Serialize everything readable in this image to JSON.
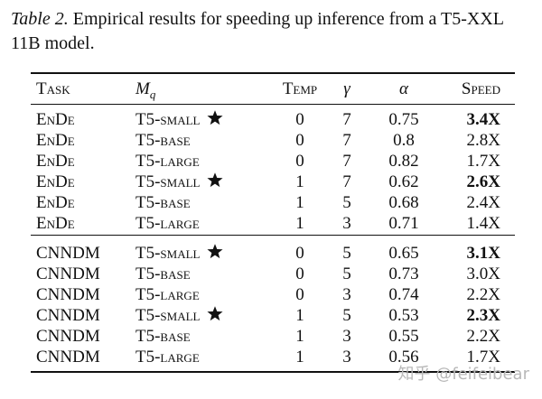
{
  "caption": {
    "label": "Table 2.",
    "text": "Empirical results for speeding up inference from a T5-XXL 11B model."
  },
  "table": {
    "headers": {
      "task": "Task",
      "model": "M",
      "model_sub": "q",
      "temp": "Temp",
      "gamma": "γ",
      "alpha": "α",
      "speed": "Speed"
    },
    "groups": [
      {
        "rows": [
          {
            "task": "EnDe",
            "model": "T5-small",
            "star": true,
            "temp": "0",
            "gamma": "7",
            "alpha": "0.75",
            "speed": "3.4X",
            "bold": true
          },
          {
            "task": "EnDe",
            "model": "T5-base",
            "star": false,
            "temp": "0",
            "gamma": "7",
            "alpha": "0.8",
            "speed": "2.8X",
            "bold": false
          },
          {
            "task": "EnDe",
            "model": "T5-large",
            "star": false,
            "temp": "0",
            "gamma": "7",
            "alpha": "0.82",
            "speed": "1.7X",
            "bold": false
          },
          {
            "task": "EnDe",
            "model": "T5-small",
            "star": true,
            "temp": "1",
            "gamma": "7",
            "alpha": "0.62",
            "speed": "2.6X",
            "bold": true
          },
          {
            "task": "EnDe",
            "model": "T5-base",
            "star": false,
            "temp": "1",
            "gamma": "5",
            "alpha": "0.68",
            "speed": "2.4X",
            "bold": false
          },
          {
            "task": "EnDe",
            "model": "T5-large",
            "star": false,
            "temp": "1",
            "gamma": "3",
            "alpha": "0.71",
            "speed": "1.4X",
            "bold": false
          }
        ]
      },
      {
        "rows": [
          {
            "task": "CNNDM",
            "model": "T5-small",
            "star": true,
            "temp": "0",
            "gamma": "5",
            "alpha": "0.65",
            "speed": "3.1X",
            "bold": true
          },
          {
            "task": "CNNDM",
            "model": "T5-base",
            "star": false,
            "temp": "0",
            "gamma": "5",
            "alpha": "0.73",
            "speed": "3.0X",
            "bold": false
          },
          {
            "task": "CNNDM",
            "model": "T5-large",
            "star": false,
            "temp": "0",
            "gamma": "3",
            "alpha": "0.74",
            "speed": "2.2X",
            "bold": false
          },
          {
            "task": "CNNDM",
            "model": "T5-small",
            "star": true,
            "temp": "1",
            "gamma": "5",
            "alpha": "0.53",
            "speed": "2.3X",
            "bold": true
          },
          {
            "task": "CNNDM",
            "model": "T5-base",
            "star": false,
            "temp": "1",
            "gamma": "3",
            "alpha": "0.55",
            "speed": "2.2X",
            "bold": false
          },
          {
            "task": "CNNDM",
            "model": "T5-large",
            "star": false,
            "temp": "1",
            "gamma": "3",
            "alpha": "0.56",
            "speed": "1.7X",
            "bold": false
          }
        ]
      }
    ]
  },
  "watermark": "知乎 @feifeibear"
}
